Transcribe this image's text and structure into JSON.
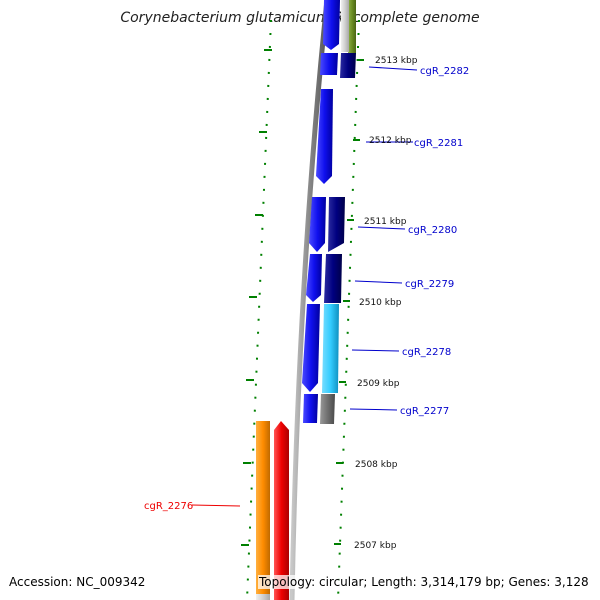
{
  "title": "Corynebacterium glutamicum R, complete genome",
  "accession": "Accession: NC_009342",
  "topology_info": "Topology: circular; Length: 3,314,179 bp; Genes: 3,128",
  "scale_labels": [
    "2513 kbp",
    "2512 kbp",
    "2511 kbp",
    "2510 kbp",
    "2509 kbp",
    "2508 kbp",
    "2507 kbp"
  ],
  "genes": [
    {
      "name": "cgR_2282",
      "color": "#0000cc"
    },
    {
      "name": "cgR_2281",
      "color": "#0000cc"
    },
    {
      "name": "cgR_2280",
      "color": "#0000cc"
    },
    {
      "name": "cgR_2279",
      "color": "#0000cc"
    },
    {
      "name": "cgR_2278",
      "color": "#0000cc"
    },
    {
      "name": "cgR_2277",
      "color": "#0000cc"
    },
    {
      "name": "cgR_2276",
      "color": "#ff0000"
    }
  ],
  "colors": {
    "tick": "#008000",
    "forward_cds": "#1010ee",
    "reverse_cds": "#ee0000",
    "navy_category": "#000080",
    "cyan_category": "#33ccff",
    "gray_category": "#707070",
    "orange_category": "#ff8c00",
    "olive_category": "#6b8e23",
    "backbone": "#888888"
  }
}
